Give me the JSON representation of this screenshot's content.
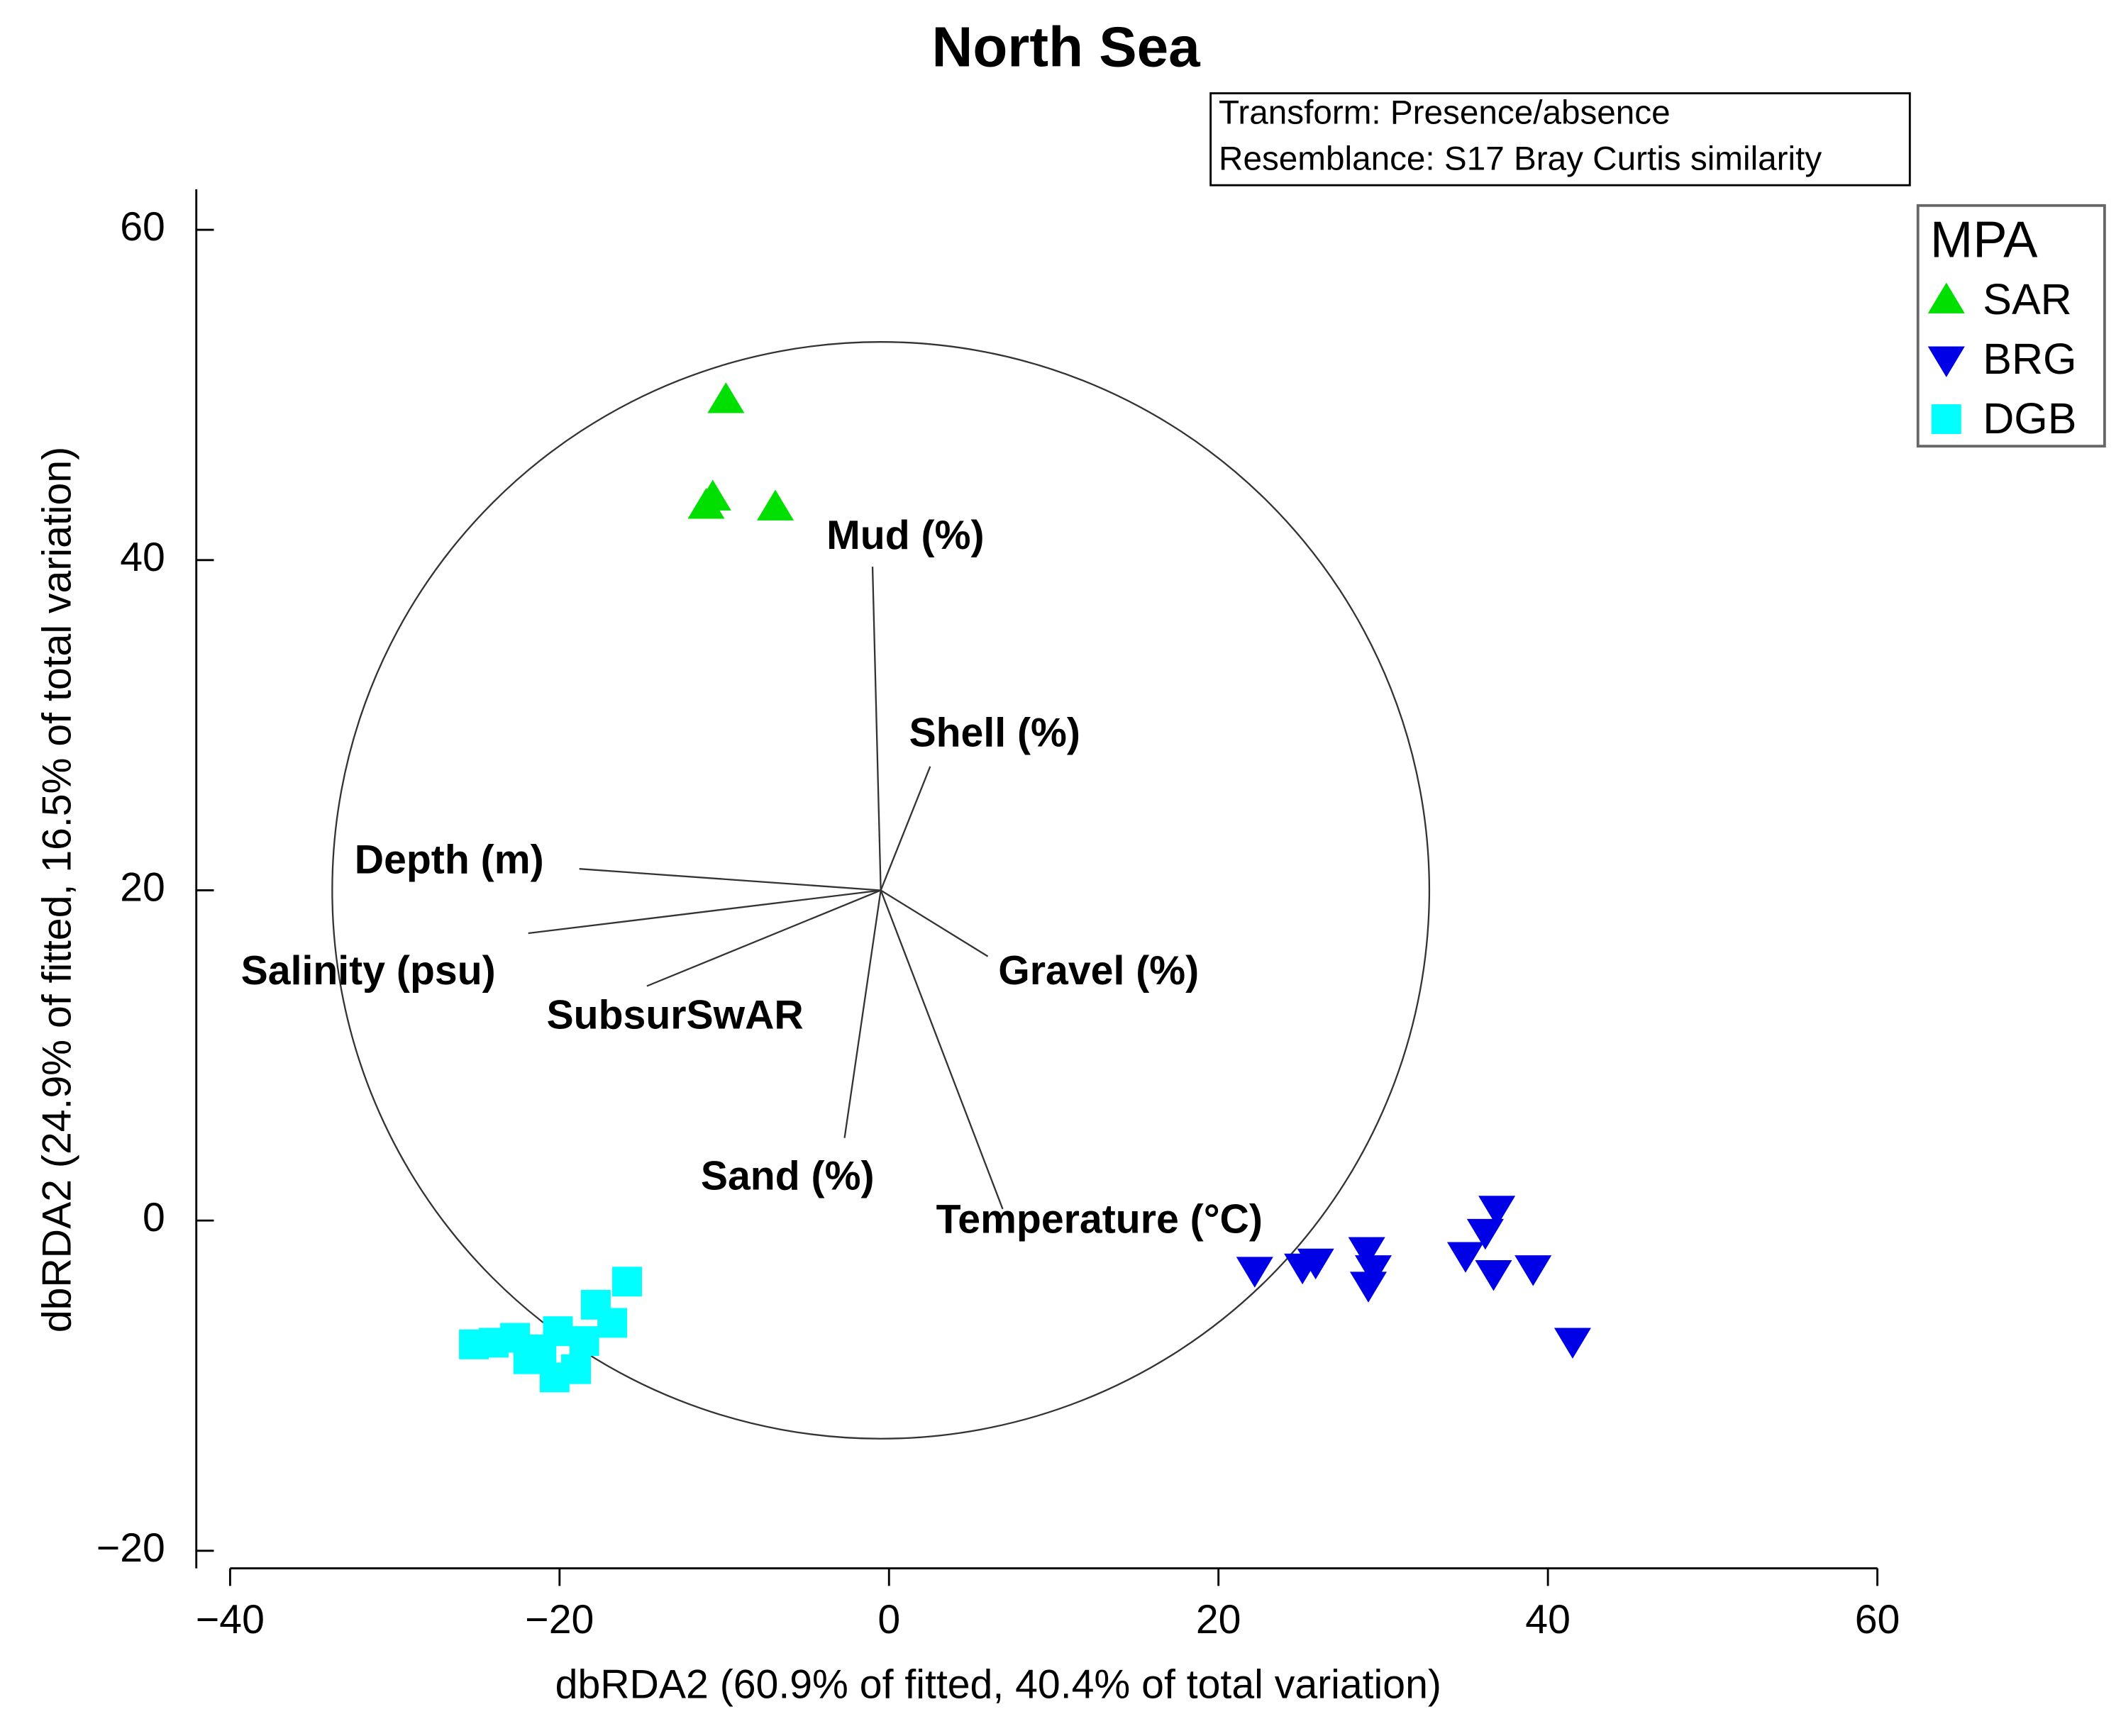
{
  "chart_data": {
    "type": "scatter",
    "title": "North Sea",
    "notes": [
      "Transform: Presence/absence",
      "Resemblance: S17 Bray Curtis similarity"
    ],
    "x_label": "dbRDA2 (60.9% of fitted, 40.4% of total variation)",
    "y_label": "dbRDA2 (24.9% of fitted, 16.5% of total variation)",
    "xlim": [
      -40,
      60
    ],
    "ylim": [
      -20,
      60
    ],
    "xticks": [
      {
        "value": -40,
        "label": "−40"
      },
      {
        "value": -20,
        "label": "−20"
      },
      0,
      20,
      40,
      60
    ],
    "yticks": [
      {
        "value": -20,
        "label": "−20"
      },
      0,
      20,
      40,
      60
    ],
    "legend_title": "MPA",
    "legend_position": "outside-right",
    "series": [
      {
        "name": "SAR",
        "color": "#00e000",
        "marker": "triangle-up",
        "x": [
          -9.9,
          -10.7,
          -11.1,
          -6.9
        ],
        "y": [
          49.7,
          43.8,
          43.3,
          43.2
        ]
      },
      {
        "name": "BRG",
        "color": "#0000e6",
        "marker": "triangle-down",
        "x": [
          22.2,
          25.1,
          25.9,
          29.0,
          29.4,
          29.1,
          35.0,
          36.2,
          36.9,
          36.7,
          39.1,
          41.5
        ],
        "y": [
          -3.0,
          -2.8,
          -2.5,
          -1.8,
          -2.9,
          -3.9,
          -2.1,
          -0.7,
          0.7,
          -3.2,
          -2.9,
          -7.3
        ]
      },
      {
        "name": "DGB",
        "color": "#00ffff",
        "marker": "square",
        "x": [
          -25.2,
          -24.0,
          -22.7,
          -21.9,
          -20.3,
          -19.0,
          -20.1,
          -17.8,
          -16.8,
          -15.9,
          -18.5,
          -21.1
        ],
        "y": [
          -7.5,
          -7.4,
          -7.1,
          -8.4,
          -9.5,
          -9.0,
          -6.7,
          -5.1,
          -6.2,
          -3.7,
          -7.3,
          -7.8
        ]
      }
    ],
    "vector_origin": [
      -0.5,
      20.0
    ],
    "circle_radius": 33.3,
    "vectors": [
      {
        "name": "Mud (%)",
        "x": -1.0,
        "y": 39.6
      },
      {
        "name": "Shell (%)",
        "x": 2.5,
        "y": 27.5
      },
      {
        "name": "Depth (m)",
        "x": -18.8,
        "y": 21.3
      },
      {
        "name": "Salinity (psu)",
        "x": -21.9,
        "y": 17.4
      },
      {
        "name": "SubsurSwAR",
        "x": -14.7,
        "y": 14.2
      },
      {
        "name": "Sand (%)",
        "x": -2.7,
        "y": 5.0
      },
      {
        "name": "Temperature (°C)",
        "x": 6.9,
        "y": 0.7
      },
      {
        "name": "Gravel (%)",
        "x": 6.0,
        "y": 16.0
      }
    ]
  }
}
